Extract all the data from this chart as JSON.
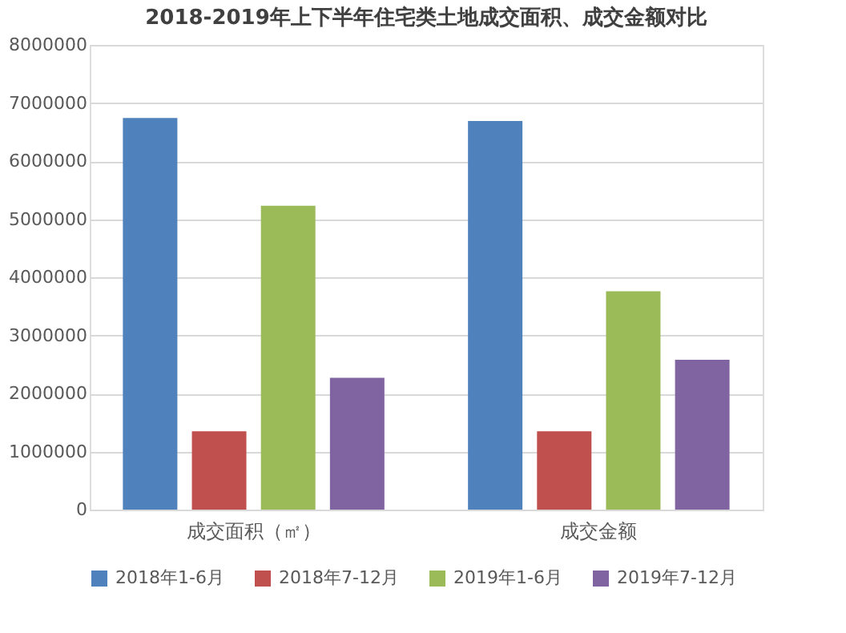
{
  "chart_data": {
    "type": "bar",
    "title": "2018-2019年上下半年住宅类土地成交面积、成交金额对比",
    "categories": [
      "成交面积（㎡）",
      "成交金额"
    ],
    "series": [
      {
        "name": "2018年1-6月",
        "color": "#4f81bd",
        "values": [
          6740000,
          6690000
        ]
      },
      {
        "name": "2018年7-12月",
        "color": "#c0504d",
        "values": [
          1350000,
          1350000
        ]
      },
      {
        "name": "2019年1-6月",
        "color": "#9bbb59",
        "values": [
          5230000,
          3760000
        ]
      },
      {
        "name": "2019年7-12月",
        "color": "#8064a2",
        "values": [
          2270000,
          2580000
        ]
      }
    ],
    "ylim": [
      0,
      8000000
    ],
    "yticks": [
      0,
      1000000,
      2000000,
      3000000,
      4000000,
      5000000,
      6000000,
      7000000,
      8000000
    ],
    "grid": "y",
    "legend": "bottom"
  }
}
